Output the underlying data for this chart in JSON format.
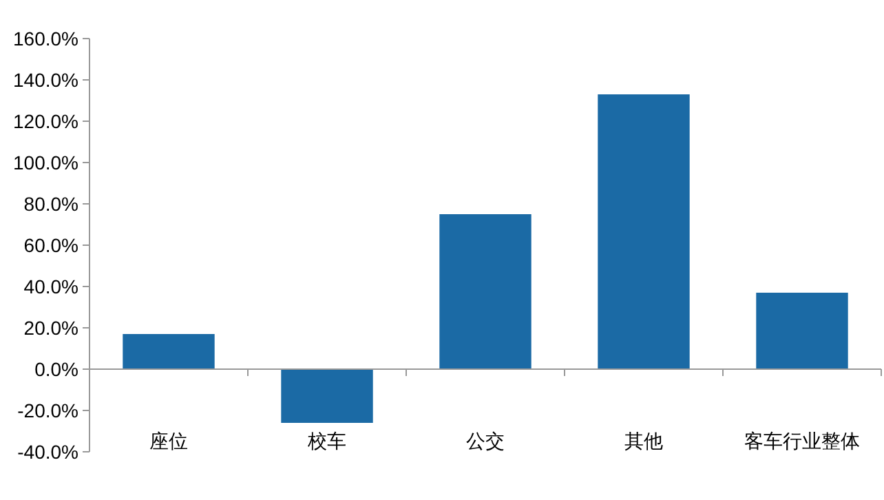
{
  "chart_data": {
    "type": "bar",
    "categories": [
      "座位",
      "校车",
      "公交",
      "其他",
      "客车行业整体"
    ],
    "values": [
      17,
      -26,
      75,
      133,
      37
    ],
    "color": "#1b6aa5",
    "ylim": [
      -40,
      160
    ],
    "yticks": [
      {
        "value": -40,
        "label": "-40.0%"
      },
      {
        "value": -20,
        "label": "-20.0%"
      },
      {
        "value": 0,
        "label": "0.0%"
      },
      {
        "value": 20,
        "label": "20.0%"
      },
      {
        "value": 40,
        "label": "40.0%"
      },
      {
        "value": 60,
        "label": "60.0%"
      },
      {
        "value": 80,
        "label": "80.0%"
      },
      {
        "value": 100,
        "label": "100.0%"
      },
      {
        "value": 120,
        "label": "120.0%"
      },
      {
        "value": 140,
        "label": "140.0%"
      },
      {
        "value": 160,
        "label": "160.0%"
      }
    ]
  }
}
